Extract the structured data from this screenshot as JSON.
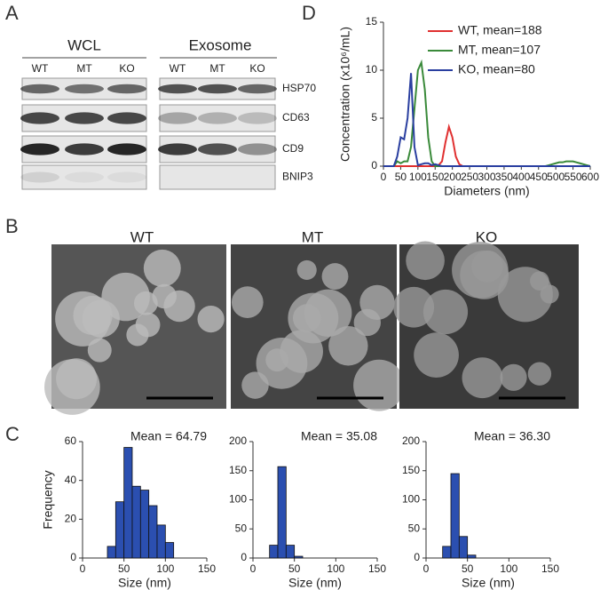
{
  "panels": {
    "a": {
      "label": "A",
      "groups": [
        "WCL",
        "Exosome"
      ],
      "lanes": [
        [
          "WT",
          "MT",
          "KO"
        ],
        [
          "WT",
          "MT",
          "KO"
        ]
      ],
      "proteins": [
        "HSP70",
        "CD63",
        "CD9",
        "BNIP3"
      ]
    },
    "b": {
      "label": "B",
      "images": [
        "WT",
        "MT",
        "KO"
      ]
    },
    "c": {
      "label": "C"
    },
    "d": {
      "label": "D"
    }
  },
  "chart_data": [
    {
      "type": "line",
      "xlabel": "Diameters (nm)",
      "ylabel": "Concentration (x10⁶/mL)",
      "x": [
        0,
        10,
        20,
        30,
        40,
        50,
        60,
        70,
        80,
        90,
        100,
        110,
        120,
        130,
        140,
        150,
        160,
        170,
        180,
        190,
        200,
        210,
        220,
        230,
        240,
        250,
        260,
        270,
        280,
        290,
        300,
        310,
        320,
        330,
        340,
        350,
        360,
        370,
        380,
        390,
        400,
        410,
        420,
        430,
        440,
        450,
        460,
        470,
        480,
        490,
        500,
        510,
        520,
        530,
        540,
        550,
        560,
        570,
        580,
        590,
        600
      ],
      "series": [
        {
          "name": "WT, mean=188",
          "color": "#e03030",
          "values": [
            0,
            0,
            0,
            0,
            0,
            0,
            0,
            0,
            0,
            0,
            0,
            0,
            0,
            0,
            0,
            0,
            0.1,
            0.5,
            2.5,
            4.1,
            3,
            1,
            0.2,
            0,
            0,
            0,
            0,
            0,
            0,
            0,
            0,
            0,
            0,
            0,
            0,
            0,
            0,
            0,
            0,
            0,
            0,
            0,
            0,
            0,
            0,
            0,
            0,
            0,
            0,
            0,
            0,
            0,
            0,
            0,
            0,
            0,
            0,
            0,
            0,
            0,
            0
          ]
        },
        {
          "name": "MT, mean=107",
          "color": "#3a8a3a",
          "values": [
            0,
            0,
            0,
            0,
            0.5,
            0.3,
            0.5,
            0.5,
            2,
            6,
            10,
            10.8,
            8,
            3,
            0.5,
            0,
            0,
            0,
            0,
            0,
            0,
            0,
            0,
            0,
            0,
            0,
            0,
            0,
            0,
            0,
            0,
            0,
            0,
            0,
            0,
            0,
            0,
            0,
            0,
            0,
            0,
            0,
            0,
            0,
            0,
            0,
            0,
            0,
            0.1,
            0.2,
            0.3,
            0.4,
            0.4,
            0.5,
            0.5,
            0.5,
            0.4,
            0.3,
            0.2,
            0.1,
            0
          ]
        },
        {
          "name": "KO, mean=80",
          "color": "#2a3fa0",
          "values": [
            0,
            0,
            0,
            0,
            1,
            3,
            2.8,
            5,
            9.7,
            2,
            0.1,
            0.2,
            0.3,
            0.3,
            0.1,
            0.2,
            0.1,
            0,
            0,
            0,
            0,
            0,
            0,
            0,
            0,
            0,
            0,
            0,
            0,
            0,
            0,
            0,
            0,
            0,
            0,
            0,
            0,
            0,
            0,
            0,
            0,
            0,
            0,
            0,
            0,
            0,
            0,
            0,
            0,
            0,
            0,
            0,
            0,
            0,
            0,
            0,
            0,
            0,
            0,
            0,
            0
          ]
        }
      ],
      "xlim": [
        0,
        600
      ],
      "xticks": [
        0,
        50,
        100,
        150,
        200,
        250,
        300,
        350,
        400,
        450,
        500,
        550,
        600
      ],
      "ylim": [
        0,
        15
      ],
      "yticks": [
        0,
        5,
        10,
        15
      ]
    },
    {
      "type": "histogram",
      "title": "Mean = 64.79",
      "xlabel": "Size (nm)",
      "ylabel": "Frequency",
      "color": "#2b4fb0",
      "bins": [
        30,
        40,
        50,
        60,
        70,
        80,
        90,
        100,
        110
      ],
      "counts": [
        6,
        29,
        57,
        37,
        35,
        27,
        17,
        8
      ],
      "xlim": [
        0,
        150
      ],
      "xticks": [
        0,
        50,
        100,
        150
      ],
      "ylim": [
        0,
        60
      ],
      "yticks": [
        0,
        20,
        40,
        60
      ]
    },
    {
      "type": "histogram",
      "title": "Mean = 35.08",
      "xlabel": "Size (nm)",
      "color": "#2b4fb0",
      "bins": [
        20,
        30,
        40,
        50,
        60
      ],
      "counts": [
        22,
        157,
        22,
        3
      ],
      "xlim": [
        0,
        150
      ],
      "xticks": [
        0,
        50,
        100,
        150
      ],
      "ylim": [
        0,
        200
      ],
      "yticks": [
        0,
        50,
        100,
        150,
        200
      ]
    },
    {
      "type": "histogram",
      "title": "Mean = 36.30",
      "xlabel": "Size (nm)",
      "color": "#2b4fb0",
      "bins": [
        20,
        30,
        40,
        50,
        60
      ],
      "counts": [
        20,
        145,
        37,
        5
      ],
      "xlim": [
        0,
        150
      ],
      "xticks": [
        0,
        50,
        100,
        150
      ],
      "ylim": [
        0,
        200
      ],
      "yticks": [
        0,
        50,
        100,
        150,
        200
      ]
    }
  ]
}
